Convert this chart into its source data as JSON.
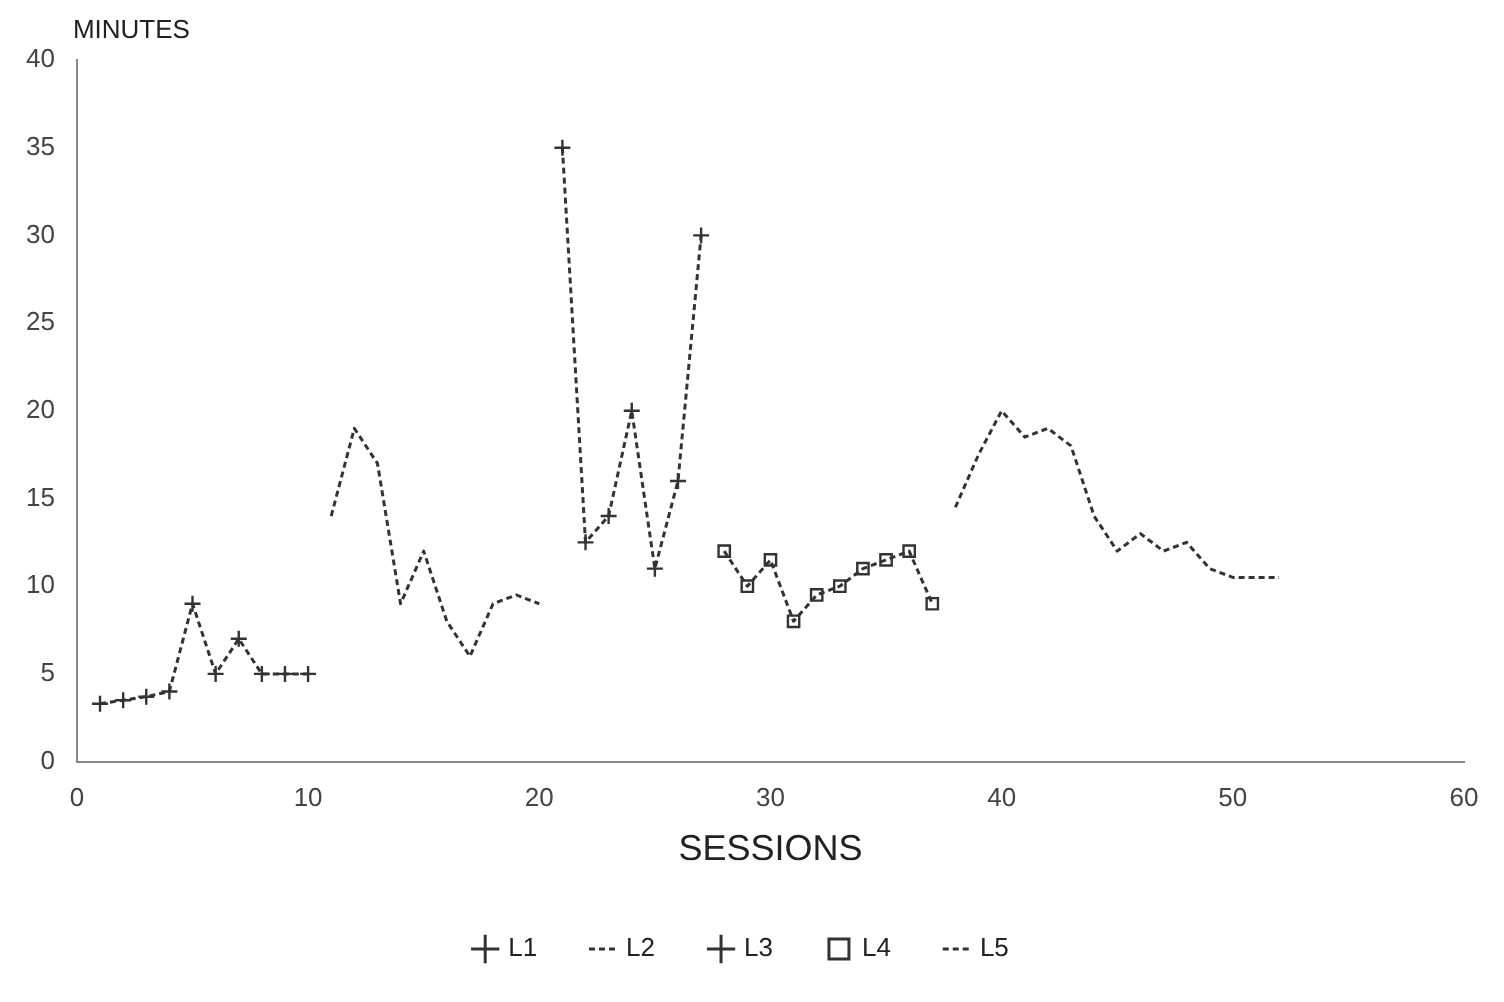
{
  "chart_data": {
    "type": "line",
    "xlabel": "SESSIONS",
    "ylabel": "MINUTES",
    "xlim": [
      0,
      60
    ],
    "xticks": [
      0,
      10,
      20,
      30,
      40,
      50,
      60
    ],
    "ylim": [
      0,
      40
    ],
    "yticks": [
      0,
      5,
      10,
      15,
      20,
      25,
      30,
      35,
      40
    ],
    "grid": false,
    "legend": "bottom",
    "line_style": "dashed",
    "series": [
      {
        "name": "L1",
        "color": "#333333",
        "marker": "cross",
        "x": [
          1,
          2,
          3,
          4,
          5,
          6,
          7,
          8,
          9,
          10
        ],
        "values": [
          3.3,
          3.5,
          3.7,
          4,
          9,
          5,
          7,
          5,
          5,
          5
        ]
      },
      {
        "name": "L2",
        "color": "#333333",
        "marker": "none",
        "x": [
          11,
          12,
          13,
          14,
          15,
          16,
          17,
          18,
          19,
          20
        ],
        "values": [
          14,
          19,
          17,
          9,
          12,
          8,
          6,
          9,
          9.5,
          9
        ]
      },
      {
        "name": "L3",
        "color": "#333333",
        "marker": "cross",
        "x": [
          21,
          22,
          23,
          24,
          25,
          26,
          27
        ],
        "values": [
          35,
          12.5,
          14,
          20,
          11,
          16,
          30
        ]
      },
      {
        "name": "L4",
        "color": "#333333",
        "marker": "square",
        "x": [
          28,
          29,
          30,
          31,
          32,
          33,
          34,
          35,
          36,
          37
        ],
        "values": [
          12,
          10,
          11.5,
          8,
          9.5,
          10,
          11,
          11.5,
          12,
          9
        ]
      },
      {
        "name": "L5",
        "color": "#333333",
        "marker": "none",
        "x": [
          38,
          39,
          40,
          41,
          42,
          43,
          44,
          45,
          46,
          47,
          48,
          49,
          50,
          51,
          52
        ],
        "values": [
          14.5,
          17.5,
          20,
          18.5,
          19,
          18,
          14,
          12,
          13,
          12,
          12.5,
          11,
          10.5,
          10.5,
          10.5
        ]
      }
    ]
  }
}
